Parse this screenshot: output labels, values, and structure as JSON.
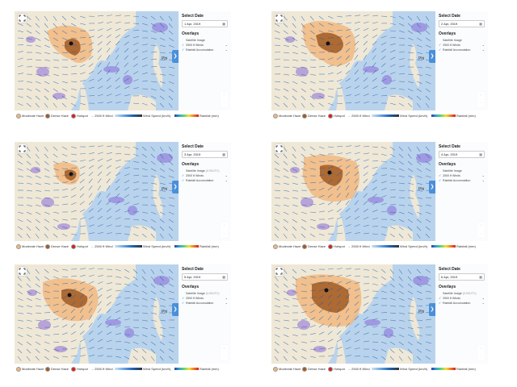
{
  "panels": [
    {
      "date": "1 Apr, 2019",
      "satellite_time": "",
      "satellite_checked": false,
      "winds_checked": true,
      "rain_checked": true
    },
    {
      "date": "2 Apr, 2019",
      "satellite_time": "",
      "satellite_checked": false,
      "winds_checked": true,
      "rain_checked": true
    },
    {
      "date": "3 Apr, 2019",
      "satellite_time": "(0:00UTC)",
      "satellite_checked": false,
      "winds_checked": true,
      "rain_checked": true
    },
    {
      "date": "4 Apr, 2019",
      "satellite_time": "",
      "satellite_checked": false,
      "winds_checked": true,
      "rain_checked": true
    },
    {
      "date": "5 Apr, 2019",
      "satellite_time": "(0:00UTC)",
      "satellite_checked": false,
      "winds_checked": true,
      "rain_checked": true
    },
    {
      "date": "6 Apr, 2019",
      "satellite_time": "(0:00UTC)",
      "satellite_checked": false,
      "winds_checked": true,
      "rain_checked": true
    }
  ],
  "sidebar": {
    "select_date": "Select Date",
    "overlays": "Overlays",
    "satellite": "Satellite Image",
    "winds": "2500 ft Winds",
    "rain": "Rainfall Accumulation",
    "calendar_icon": "calendar-icon",
    "collapse_icon": "chevron-right-icon"
  },
  "legend": {
    "moderate": "Moderate Haze",
    "dense": "Dense Haze",
    "hotspot": "Hotspot",
    "wind": "2500 ft Wind",
    "wind_speed": "Wind Speed (km/h)",
    "rainfall": "Rainfall (mm)"
  },
  "map_labels": {
    "ph": "Phi"
  },
  "colors": {
    "sea": "#b9d3ec",
    "land": "#efe8d6",
    "moderate_haze": "#f1b57a",
    "dense_haze": "#a25a23",
    "hotspot": "#d62020",
    "rain": "#8a6ad8"
  }
}
